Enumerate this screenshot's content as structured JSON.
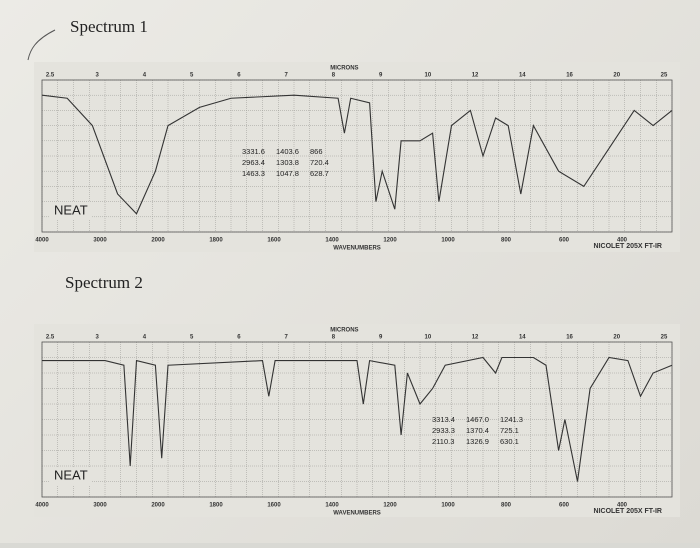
{
  "spectra": [
    {
      "title": "Spectrum 1",
      "sample": "NEAT",
      "top_axis_label": "MICRONS",
      "bottom_axis_label": "WAVENUMBERS",
      "instrument": "NICOLET 205X FT-IR",
      "wavenumber_ticks": [
        "4000",
        "3000",
        "2000",
        "1800",
        "1600",
        "1400",
        "1200",
        "1000",
        "800",
        "600",
        "400"
      ],
      "micron_ticks": [
        "2.5",
        "3",
        "4",
        "5",
        "6",
        "7",
        "8",
        "9",
        "10",
        "12",
        "14",
        "16",
        "20",
        "25"
      ],
      "peaks": [
        [
          "3331.6",
          "1403.6",
          "866"
        ],
        [
          "2963.4",
          "1303.8",
          "720.4"
        ],
        [
          "1463.3",
          "1047.8",
          "628.7"
        ]
      ]
    },
    {
      "title": "Spectrum 2",
      "sample": "NEAT",
      "top_axis_label": "MICRONS",
      "bottom_axis_label": "WAVENUMBERS",
      "instrument": "NICOLET 205X FT-IR",
      "wavenumber_ticks": [
        "4000",
        "3000",
        "2000",
        "1800",
        "1600",
        "1400",
        "1200",
        "1000",
        "800",
        "600",
        "400"
      ],
      "micron_ticks": [
        "2.5",
        "3",
        "4",
        "5",
        "6",
        "7",
        "8",
        "9",
        "10",
        "12",
        "14",
        "16",
        "20",
        "25"
      ],
      "peaks": [
        [
          "3313.4",
          "1467.0",
          "1241.3"
        ],
        [
          "2933.3",
          "1370.4",
          "725.1"
        ],
        [
          "2110.3",
          "1326.9",
          "630.1"
        ]
      ]
    }
  ]
}
